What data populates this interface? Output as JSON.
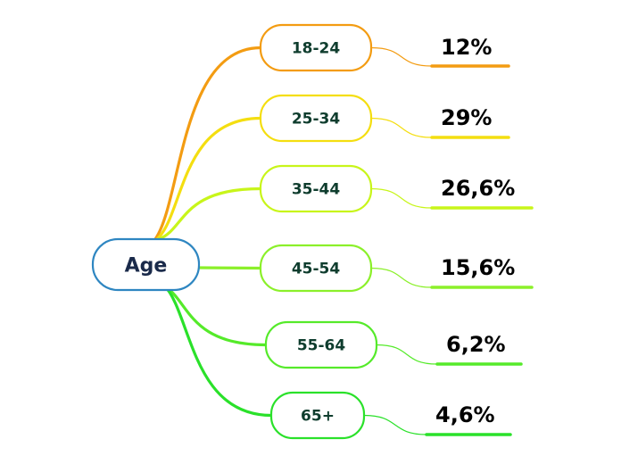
{
  "root": {
    "label": "Age",
    "color": "#2e86c1",
    "text_color": "#1a2a4a"
  },
  "branches": [
    {
      "label": "18-24",
      "value": "12%",
      "color": "#f39c12"
    },
    {
      "label": "25-34",
      "value": "29%",
      "color": "#f4de10"
    },
    {
      "label": "35-44",
      "value": "26,6%",
      "color": "#c8f51a"
    },
    {
      "label": "45-54",
      "value": "15,6%",
      "color": "#8bf02a"
    },
    {
      "label": "55-64",
      "value": "6,2%",
      "color": "#55ea2a"
    },
    {
      "label": "65+",
      "value": "4,6%",
      "color": "#2ae12a"
    }
  ],
  "styles": {
    "branch_text_color": "#0f3d2e",
    "value_text_color": "#000000"
  }
}
